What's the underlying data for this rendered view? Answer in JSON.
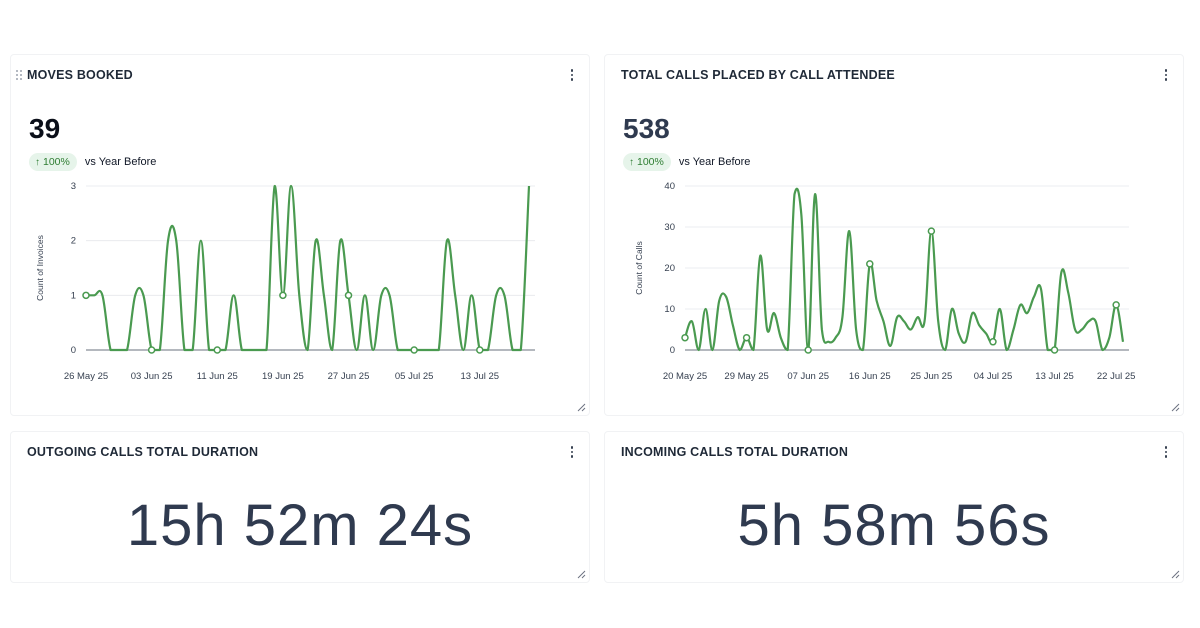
{
  "cards": [
    {
      "id": "moves",
      "title": "MOVES BOOKED",
      "kpi": "39",
      "kpi_color": "#0b0f19",
      "badge": "100%",
      "comparison": "vs Year Before"
    },
    {
      "id": "calls",
      "title": "TOTAL CALLS PLACED BY CALL ATTENDEE",
      "kpi": "538",
      "kpi_color": "#2f3a4f",
      "badge": "100%",
      "comparison": "vs Year Before"
    },
    {
      "id": "out",
      "title": "OUTGOING CALLS TOTAL DURATION",
      "value": "15h 52m 24s"
    },
    {
      "id": "in",
      "title": "INCOMING CALLS TOTAL DURATION",
      "value": "5h 58m 56s"
    }
  ],
  "colors": {
    "series_line": "#4a9a50",
    "grid": "#e5e7eb",
    "badge_bg": "#e6f4ea",
    "badge_text": "#2e7d32"
  },
  "icons": {
    "menu": "vertical-dots-icon",
    "resize": "resize-corner-icon",
    "drag": "drag-grip-icon",
    "arrow": "arrow-up-icon"
  },
  "chart_data": [
    {
      "type": "line",
      "ylabel": "Count of Invoices",
      "xlabel": "",
      "ylim": [
        0,
        3
      ],
      "yticks": [
        0,
        1,
        2,
        3
      ],
      "xticks": [
        "26 May 25",
        "03 Jun 25",
        "11 Jun 25",
        "19 Jun 25",
        "27 Jun 25",
        "05 Jul 25",
        "13 Jul 25"
      ],
      "grid": true,
      "series": [
        {
          "x": [
            "2025-05-26",
            "2025-05-27",
            "2025-05-28",
            "2025-05-29",
            "2025-05-30",
            "2025-05-31",
            "2025-06-01",
            "2025-06-02",
            "2025-06-03",
            "2025-06-04",
            "2025-06-05",
            "2025-06-06",
            "2025-06-07",
            "2025-06-08",
            "2025-06-09",
            "2025-06-10",
            "2025-06-11",
            "2025-06-12",
            "2025-06-13",
            "2025-06-14",
            "2025-06-15",
            "2025-06-16",
            "2025-06-17",
            "2025-06-18",
            "2025-06-19",
            "2025-06-20",
            "2025-06-21",
            "2025-06-22",
            "2025-06-23",
            "2025-06-24",
            "2025-06-25",
            "2025-06-26",
            "2025-06-27",
            "2025-06-28",
            "2025-06-29",
            "2025-06-30",
            "2025-07-01",
            "2025-07-02",
            "2025-07-03",
            "2025-07-04",
            "2025-07-05",
            "2025-07-06",
            "2025-07-07",
            "2025-07-08",
            "2025-07-09",
            "2025-07-10",
            "2025-07-11",
            "2025-07-12",
            "2025-07-13",
            "2025-07-14",
            "2025-07-15",
            "2025-07-16",
            "2025-07-17",
            "2025-07-18",
            "2025-07-19"
          ],
          "values": [
            1,
            1,
            1,
            0,
            0,
            0,
            1,
            1,
            0,
            0,
            2,
            2,
            0,
            0,
            2,
            0,
            0,
            0,
            1,
            0,
            0,
            0,
            0,
            3,
            1,
            3,
            1,
            0,
            2,
            1,
            0,
            2,
            1,
            0,
            1,
            0,
            1,
            1,
            0,
            0,
            0,
            0,
            0,
            0,
            2,
            1,
            0,
            1,
            0,
            0,
            1,
            1,
            0,
            0,
            3
          ],
          "markers_at": [
            "2025-05-26",
            "2025-06-03",
            "2025-06-11",
            "2025-06-19",
            "2025-06-27",
            "2025-07-05",
            "2025-07-13"
          ]
        }
      ]
    },
    {
      "type": "line",
      "ylabel": "Count of Calls",
      "xlabel": "",
      "ylim": [
        0,
        40
      ],
      "yticks": [
        0,
        10,
        20,
        30,
        40
      ],
      "xticks": [
        "20 May 25",
        "29 May 25",
        "07 Jun 25",
        "16 Jun 25",
        "25 Jun 25",
        "04 Jul 25",
        "13 Jul 25",
        "22 Jul 25"
      ],
      "grid": true,
      "series": [
        {
          "x": [
            "2025-05-20",
            "2025-05-21",
            "2025-05-22",
            "2025-05-23",
            "2025-05-24",
            "2025-05-25",
            "2025-05-26",
            "2025-05-27",
            "2025-05-28",
            "2025-05-29",
            "2025-05-30",
            "2025-05-31",
            "2025-06-01",
            "2025-06-02",
            "2025-06-03",
            "2025-06-04",
            "2025-06-05",
            "2025-06-06",
            "2025-06-07",
            "2025-06-08",
            "2025-06-09",
            "2025-06-10",
            "2025-06-11",
            "2025-06-12",
            "2025-06-13",
            "2025-06-14",
            "2025-06-15",
            "2025-06-16",
            "2025-06-17",
            "2025-06-18",
            "2025-06-19",
            "2025-06-20",
            "2025-06-21",
            "2025-06-22",
            "2025-06-23",
            "2025-06-24",
            "2025-06-25",
            "2025-06-26",
            "2025-06-27",
            "2025-06-28",
            "2025-06-29",
            "2025-06-30",
            "2025-07-01",
            "2025-07-02",
            "2025-07-03",
            "2025-07-04",
            "2025-07-05",
            "2025-07-06",
            "2025-07-07",
            "2025-07-08",
            "2025-07-09",
            "2025-07-10",
            "2025-07-11",
            "2025-07-12",
            "2025-07-13",
            "2025-07-14",
            "2025-07-15",
            "2025-07-16",
            "2025-07-17",
            "2025-07-18",
            "2025-07-19",
            "2025-07-20",
            "2025-07-21",
            "2025-07-22",
            "2025-07-23"
          ],
          "values": [
            3,
            7,
            0,
            10,
            0,
            12,
            13,
            6,
            0,
            3,
            0,
            23,
            5,
            9,
            3,
            0,
            38,
            33,
            0,
            38,
            5,
            2,
            3,
            8,
            29,
            5,
            0,
            21,
            12,
            7,
            1,
            8,
            7,
            5,
            8,
            7,
            29,
            7,
            0,
            10,
            4,
            2,
            9,
            6,
            4,
            2,
            10,
            0,
            5,
            11,
            9,
            13,
            15,
            0,
            0,
            19,
            14,
            5,
            5,
            7,
            7,
            0,
            3,
            11,
            2
          ],
          "markers_at": [
            "2025-05-20",
            "2025-05-29",
            "2025-06-07",
            "2025-06-16",
            "2025-06-25",
            "2025-07-04",
            "2025-07-13",
            "2025-07-22"
          ]
        }
      ]
    }
  ]
}
